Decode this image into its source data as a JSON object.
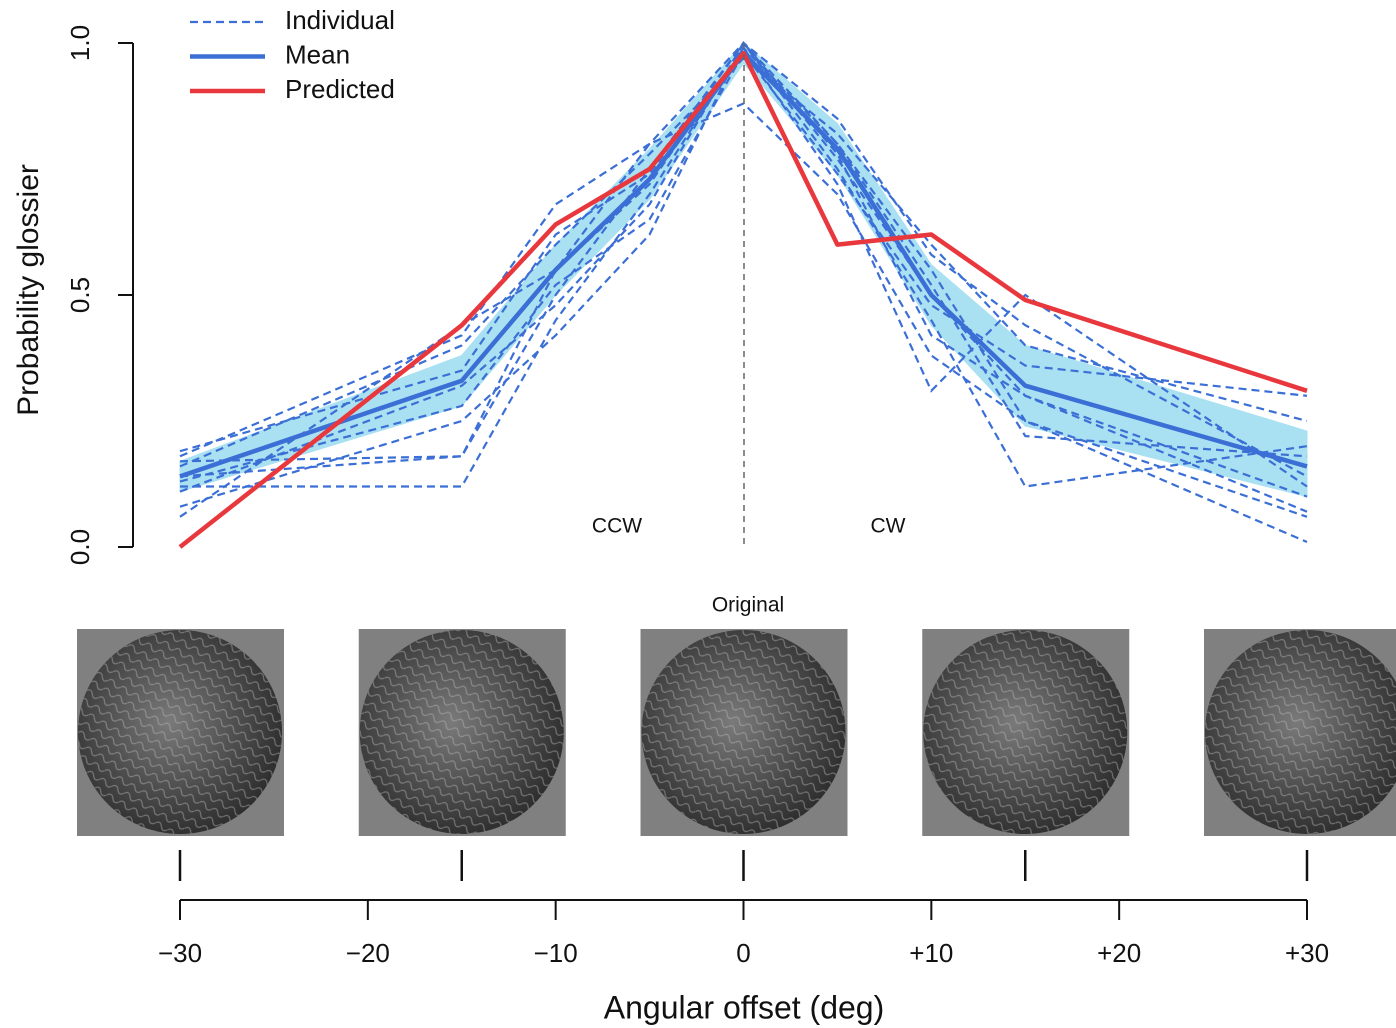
{
  "chart_data": {
    "type": "line",
    "y_label": "Probability glossier",
    "x_label": "Angular offset (deg)",
    "annotations": {
      "ccw": "CCW",
      "cw": "CW",
      "original": "Original"
    },
    "x": [
      -30,
      -15,
      -10,
      -5,
      0,
      5,
      10,
      15,
      30
    ],
    "ylim": [
      0,
      1
    ],
    "yticks": [
      {
        "value": 0,
        "label": "0.0"
      },
      {
        "value": 0.5,
        "label": "0.5"
      },
      {
        "value": 1,
        "label": "1.0"
      }
    ],
    "xlim": [
      -30,
      30
    ],
    "xticks": [
      {
        "value": -30,
        "label": "−30"
      },
      {
        "value": -20,
        "label": "−20"
      },
      {
        "value": -10,
        "label": "−10"
      },
      0,
      {
        "value": 10,
        "label": "+10"
      },
      {
        "value": 20,
        "label": "+20"
      },
      {
        "value": 30,
        "label": "+30"
      }
    ],
    "image_offsets": [
      -30,
      -15,
      0,
      15,
      30
    ],
    "band": {
      "color": "#a9e0f2",
      "upper": [
        0.17,
        0.38,
        0.6,
        0.79,
        1.0,
        0.84,
        0.56,
        0.4,
        0.23
      ],
      "lower": [
        0.11,
        0.28,
        0.5,
        0.69,
        0.96,
        0.74,
        0.44,
        0.24,
        0.1
      ]
    },
    "series": [
      {
        "name": "Individual",
        "color": "#3b6fd6",
        "dashed": true,
        "lines": [
          [
            0.18,
            0.42,
            0.68,
            0.8,
            1.0,
            0.8,
            0.55,
            0.25,
            0.06
          ],
          [
            0.12,
            0.12,
            0.45,
            0.7,
            0.99,
            0.72,
            0.31,
            0.5,
            0.12
          ],
          [
            0.14,
            0.18,
            0.5,
            0.75,
            1.0,
            0.75,
            0.45,
            0.12,
            0.2
          ],
          [
            0.16,
            0.4,
            0.6,
            0.78,
            0.97,
            0.82,
            0.6,
            0.4,
            0.25
          ],
          [
            0.08,
            0.25,
            0.42,
            0.62,
            1.0,
            0.77,
            0.5,
            0.3,
            0.1
          ],
          [
            0.06,
            0.44,
            0.55,
            0.8,
            0.88,
            0.7,
            0.38,
            0.25,
            0.01
          ],
          [
            0.19,
            0.35,
            0.62,
            0.74,
            1.0,
            0.85,
            0.58,
            0.44,
            0.14
          ],
          [
            0.13,
            0.28,
            0.52,
            0.65,
            0.98,
            0.74,
            0.48,
            0.36,
            0.3
          ],
          [
            0.17,
            0.18,
            0.55,
            0.72,
            0.99,
            0.8,
            0.52,
            0.22,
            0.18
          ],
          [
            0.11,
            0.32,
            0.48,
            0.68,
            1.0,
            0.78,
            0.42,
            0.3,
            0.07
          ]
        ]
      },
      {
        "name": "Mean",
        "color": "#3b6fd6",
        "values": [
          0.14,
          0.33,
          0.55,
          0.73,
          0.98,
          0.79,
          0.5,
          0.32,
          0.16
        ]
      },
      {
        "name": "Predicted",
        "color": "#e8383d",
        "values": [
          0.0,
          0.44,
          0.64,
          0.75,
          0.98,
          0.6,
          0.62,
          0.49,
          0.31
        ]
      }
    ]
  }
}
